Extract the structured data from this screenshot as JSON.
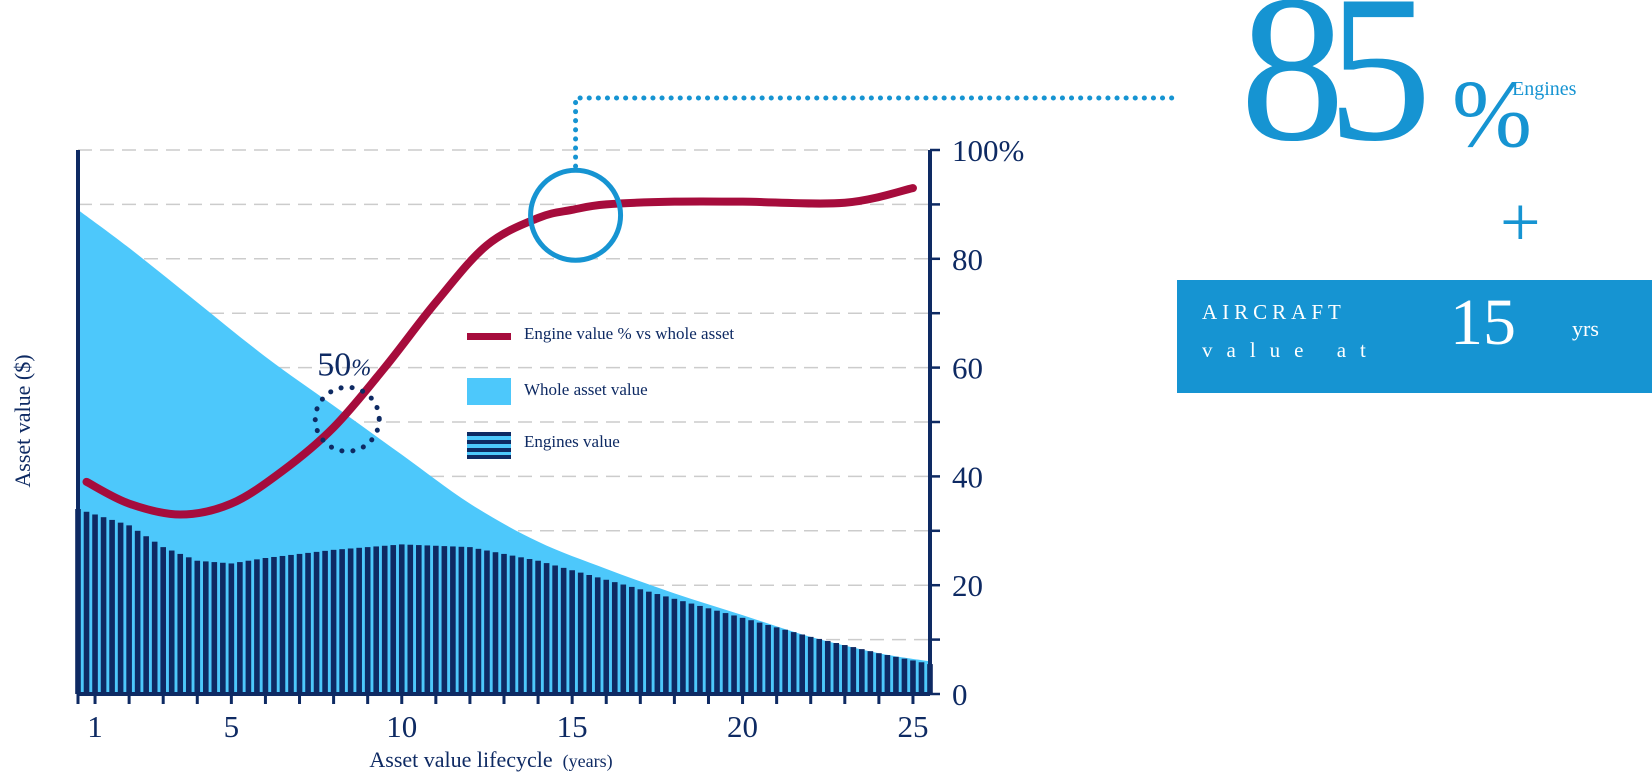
{
  "colors": {
    "navy": "#0e2a63",
    "whole_asset": "#4dc8fb",
    "engine_line": "#a60c3c",
    "accent_blue": "#1694d2",
    "gridline": "#cccccc"
  },
  "highlight": {
    "big_number": "85",
    "big_percent": "%",
    "big_label": "Engines",
    "plus": "+",
    "aircraft_line1": "AIRCRAFT",
    "aircraft_line2": "value at",
    "aircraft_years": "15",
    "aircraft_unit": "yrs"
  },
  "chart_data": {
    "type": "area",
    "xlabel_main": "Asset value lifecycle",
    "xlabel_unit": "(years)",
    "ylabel": "Asset value ($)",
    "x_ticks": [
      "1",
      "5",
      "10",
      "15",
      "20",
      "25"
    ],
    "x_tick_values": [
      1,
      5,
      10,
      15,
      20,
      25
    ],
    "xlim": [
      0.5,
      25.5
    ],
    "y_ticks": [
      "0",
      "20",
      "40",
      "60",
      "80",
      "100%"
    ],
    "y_tick_values": [
      0,
      20,
      40,
      60,
      80,
      100
    ],
    "ylim": [
      0,
      100
    ],
    "grid": true,
    "legend_position": "center",
    "annotation_50": {
      "number": "50",
      "percent": "%",
      "x": 8.4,
      "y": 50.5
    },
    "annotation_85": {
      "x": 15.1,
      "y": 88
    },
    "series": [
      {
        "name": "Engine value % vs whole asset",
        "kind": "line",
        "x": [
          0.75,
          2,
          3.5,
          5,
          6.5,
          8,
          9.5,
          11,
          12.5,
          14,
          15,
          16,
          18,
          20,
          23,
          25
        ],
        "values": [
          39,
          35,
          33,
          35,
          41,
          49,
          60,
          72,
          82.5,
          87.5,
          89,
          90,
          90.5,
          90.5,
          90.3,
          93
        ]
      },
      {
        "name": "Whole asset value",
        "kind": "area",
        "x": [
          0.5,
          2,
          4,
          6,
          8,
          10,
          12,
          14,
          16,
          18,
          20,
          22,
          24,
          25.5
        ],
        "values": [
          89,
          82,
          72,
          62,
          53,
          44,
          35,
          28,
          23,
          18.5,
          14.5,
          10.5,
          7.5,
          6
        ]
      },
      {
        "name": "Engines value",
        "kind": "bars",
        "x": [
          0.5,
          2,
          3,
          4,
          5,
          6,
          8,
          10,
          12,
          14,
          16,
          18,
          20,
          22,
          24,
          25.5
        ],
        "values": [
          34,
          31,
          27,
          24.5,
          24,
          25,
          26.5,
          27.5,
          27,
          24.5,
          21,
          17.5,
          14,
          10.5,
          7.5,
          5.5
        ]
      }
    ]
  }
}
